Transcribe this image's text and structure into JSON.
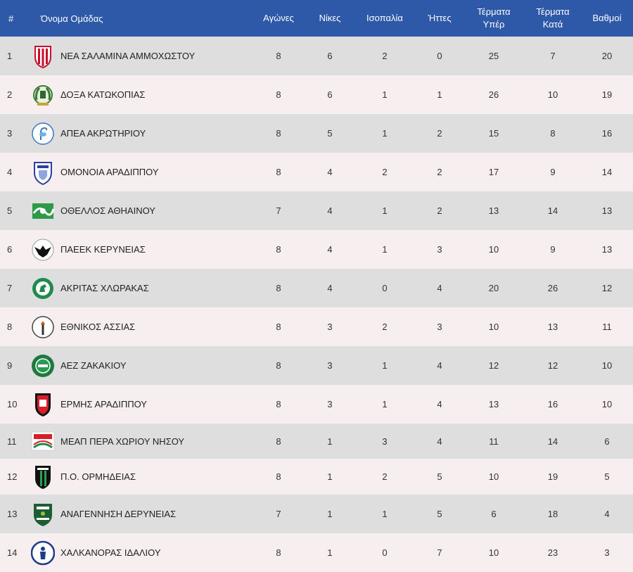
{
  "headers": {
    "rank": "#",
    "team": "Όνομα Ομάδας",
    "played": "Αγώνες",
    "wins": "Νίκες",
    "draws": "Ισοπαλία",
    "losses": "Ήττες",
    "goals_for": [
      "Τέρματα",
      "Υπέρ"
    ],
    "goals_against": [
      "Τέρματα",
      "Κατά"
    ],
    "points": "Βαθμοί"
  },
  "colors": {
    "header_bg": "#2d59a8",
    "row_odd": "#dedede",
    "row_even": "#f7efef"
  },
  "rows": [
    {
      "rank": "1",
      "name": "ΝΕΑ ΣΑΛΑΜΙΝΑ ΑΜΜΟΧΩΣΤΟΥ",
      "played": "8",
      "wins": "6",
      "draws": "2",
      "losses": "0",
      "gf": "25",
      "ga": "7",
      "pts": "20",
      "logo": "shield-red-white-stripes-icon"
    },
    {
      "rank": "2",
      "name": "ΔΟΞΑ ΚΑΤΩΚΟΠΙΑΣ",
      "played": "8",
      "wins": "6",
      "draws": "1",
      "losses": "1",
      "gf": "26",
      "ga": "10",
      "pts": "19",
      "logo": "crest-green-wreath-icon"
    },
    {
      "rank": "3",
      "name": "ΑΠΕΑ ΑΚΡΩΤΗΡΙΟΥ",
      "played": "8",
      "wins": "5",
      "draws": "1",
      "losses": "2",
      "gf": "15",
      "ga": "8",
      "pts": "16",
      "logo": "round-flamingo-blue-icon"
    },
    {
      "rank": "4",
      "name": "ΟΜΟΝΟΙΑ ΑΡΑΔΙΠΠΟΥ",
      "played": "8",
      "wins": "4",
      "draws": "2",
      "losses": "2",
      "gf": "17",
      "ga": "9",
      "pts": "14",
      "logo": "shield-blue-white-icon"
    },
    {
      "rank": "5",
      "name": "ΟΘΕΛΛΟΣ ΑΘΗΑΙΝΟΥ",
      "played": "7",
      "wins": "4",
      "draws": "1",
      "losses": "2",
      "gf": "13",
      "ga": "14",
      "pts": "13",
      "logo": "badge-green-wave-icon"
    },
    {
      "rank": "6",
      "name": "ΠΑΕΕΚ ΚΕΡΥΝΕΙΑΣ",
      "played": "8",
      "wins": "4",
      "draws": "1",
      "losses": "3",
      "gf": "10",
      "ga": "9",
      "pts": "13",
      "logo": "round-black-eagle-icon"
    },
    {
      "rank": "7",
      "name": "ΑΚΡΙΤΑΣ ΧΛΩΡΑΚΑΣ",
      "played": "8",
      "wins": "4",
      "draws": "0",
      "losses": "4",
      "gf": "20",
      "ga": "26",
      "pts": "12",
      "logo": "round-green-horse-icon"
    },
    {
      "rank": "8",
      "name": "ΕΘΝΙΚΟΣ ΑΣΣΙΑΣ",
      "played": "8",
      "wins": "3",
      "draws": "2",
      "losses": "3",
      "gf": "10",
      "ga": "13",
      "pts": "11",
      "logo": "round-white-torch-icon"
    },
    {
      "rank": "9",
      "name": "ΑΕΖ ΖΑΚΑΚΙΟΥ",
      "played": "8",
      "wins": "3",
      "draws": "1",
      "losses": "4",
      "gf": "12",
      "ga": "12",
      "pts": "10",
      "logo": "round-green-aez-icon"
    },
    {
      "rank": "10",
      "name": "ΕΡΜΗΣ ΑΡΑΔΙΠΠΟΥ",
      "played": "8",
      "wins": "3",
      "draws": "1",
      "losses": "4",
      "gf": "13",
      "ga": "16",
      "pts": "10",
      "logo": "shield-red-black-icon"
    },
    {
      "rank": "11",
      "name": "ΜΕΑΠ ΠΕΡΑ ΧΩΡΙΟΥ ΝΗΣΟΥ",
      "played": "8",
      "wins": "1",
      "draws": "3",
      "losses": "4",
      "gf": "11",
      "ga": "14",
      "pts": "6",
      "logo": "badge-meap-red-green-icon"
    },
    {
      "rank": "12",
      "name": "Π.Ο. ΟΡΜΗΔΕΙΑΣ",
      "played": "8",
      "wins": "1",
      "draws": "2",
      "losses": "5",
      "gf": "10",
      "ga": "19",
      "pts": "5",
      "logo": "shield-black-green-stripes-icon"
    },
    {
      "rank": "13",
      "name": "ΑΝΑΓΕΝΝΗΣΗ ΔΕΡΥΝΕΙΑΣ",
      "played": "7",
      "wins": "1",
      "draws": "1",
      "losses": "5",
      "gf": "6",
      "ga": "18",
      "pts": "4",
      "logo": "shield-dark-green-icon"
    },
    {
      "rank": "14",
      "name": "ΧΑΛΚΑΝΟΡΑΣ ΙΔΑΛΙΟΥ",
      "played": "8",
      "wins": "1",
      "draws": "0",
      "losses": "7",
      "gf": "10",
      "ga": "23",
      "pts": "3",
      "logo": "round-blue-figure-icon"
    }
  ]
}
